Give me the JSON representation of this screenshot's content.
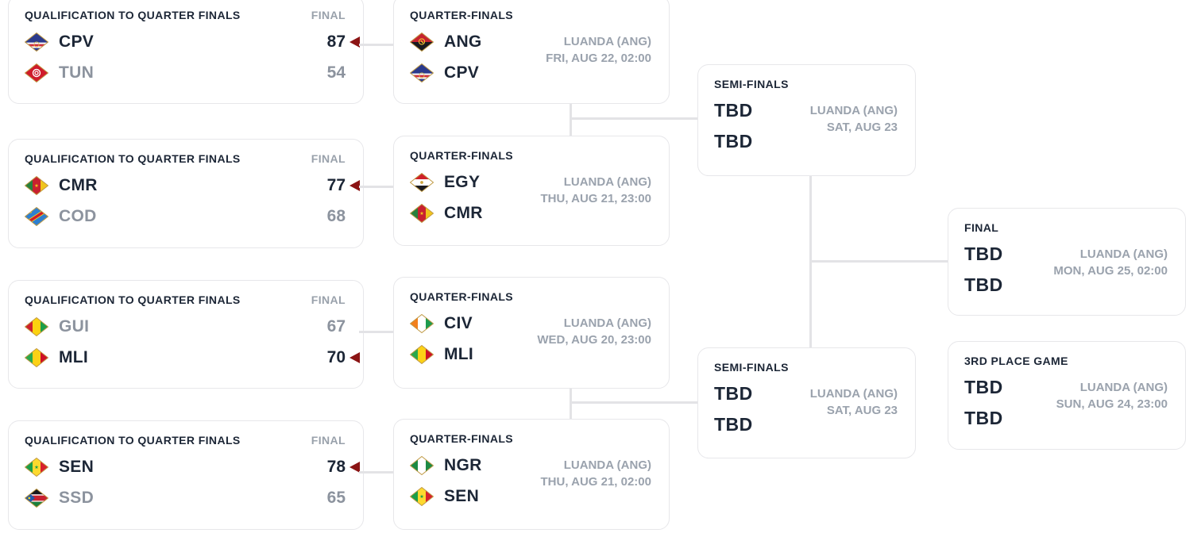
{
  "bracket": {
    "qualification_games": [
      {
        "title": "QUALIFICATION TO QUARTER FINALS",
        "status": "FINAL",
        "teams": [
          {
            "code": "CPV",
            "flag": "CPV",
            "score": "87",
            "winner": true
          },
          {
            "code": "TUN",
            "flag": "TUN",
            "score": "54",
            "winner": false
          }
        ]
      },
      {
        "title": "QUALIFICATION TO QUARTER FINALS",
        "status": "FINAL",
        "teams": [
          {
            "code": "CMR",
            "flag": "CMR",
            "score": "77",
            "winner": true
          },
          {
            "code": "COD",
            "flag": "COD",
            "score": "68",
            "winner": false
          }
        ]
      },
      {
        "title": "QUALIFICATION TO QUARTER FINALS",
        "status": "FINAL",
        "teams": [
          {
            "code": "GUI",
            "flag": "GUI",
            "score": "67",
            "winner": false
          },
          {
            "code": "MLI",
            "flag": "MLI",
            "score": "70",
            "winner": true
          }
        ]
      },
      {
        "title": "QUALIFICATION TO QUARTER FINALS",
        "status": "FINAL",
        "teams": [
          {
            "code": "SEN",
            "flag": "SEN",
            "score": "78",
            "winner": true
          },
          {
            "code": "SSD",
            "flag": "SSD",
            "score": "65",
            "winner": false
          }
        ]
      }
    ],
    "quarter_finals": [
      {
        "title": "QUARTER-FINALS",
        "venue": "LUANDA (ANG)",
        "datetime": "FRI, AUG 22, 02:00",
        "teams": [
          {
            "code": "ANG",
            "flag": "ANG"
          },
          {
            "code": "CPV",
            "flag": "CPV"
          }
        ]
      },
      {
        "title": "QUARTER-FINALS",
        "venue": "LUANDA (ANG)",
        "datetime": "THU, AUG 21, 23:00",
        "teams": [
          {
            "code": "EGY",
            "flag": "EGY"
          },
          {
            "code": "CMR",
            "flag": "CMR"
          }
        ]
      },
      {
        "title": "QUARTER-FINALS",
        "venue": "LUANDA (ANG)",
        "datetime": "WED, AUG 20, 23:00",
        "teams": [
          {
            "code": "CIV",
            "flag": "CIV"
          },
          {
            "code": "MLI",
            "flag": "MLI"
          }
        ]
      },
      {
        "title": "QUARTER-FINALS",
        "venue": "LUANDA (ANG)",
        "datetime": "THU, AUG 21, 02:00",
        "teams": [
          {
            "code": "NGR",
            "flag": "NGR"
          },
          {
            "code": "SEN",
            "flag": "SEN"
          }
        ]
      }
    ],
    "semi_finals": [
      {
        "title": "SEMI-FINALS",
        "venue": "LUANDA (ANG)",
        "datetime": "SAT, AUG 23",
        "teams": [
          {
            "code": "TBD"
          },
          {
            "code": "TBD"
          }
        ]
      },
      {
        "title": "SEMI-FINALS",
        "venue": "LUANDA (ANG)",
        "datetime": "SAT, AUG 23",
        "teams": [
          {
            "code": "TBD"
          },
          {
            "code": "TBD"
          }
        ]
      }
    ],
    "final_game": {
      "title": "FINAL",
      "venue": "LUANDA (ANG)",
      "datetime": "MON, AUG 25, 02:00",
      "teams": [
        {
          "code": "TBD"
        },
        {
          "code": "TBD"
        }
      ]
    },
    "third_place_game": {
      "title": "3RD PLACE GAME",
      "venue": "LUANDA (ANG)",
      "datetime": "SUN, AUG 24, 23:00",
      "teams": [
        {
          "code": "TBD"
        },
        {
          "code": "TBD"
        }
      ]
    }
  },
  "colors": {
    "text_dark": "#1c2636",
    "text_gray": "#8c939e",
    "venue_gray": "#9aa2ad",
    "card_border": "#e7e7ea",
    "connector": "#e3e3e6",
    "winner_arrow": "#8b1414",
    "flag_outline": "#c09a45"
  },
  "flag_icons": {
    "CPV": {
      "bg": "#2b3a8c",
      "el": [
        [
          "r",
          0,
          12.6,
          30,
          2.1,
          "#ffffff"
        ],
        [
          "r",
          0,
          14.7,
          30,
          2.7,
          "#d32f3d"
        ],
        [
          "r",
          0,
          17.4,
          30,
          2.1,
          "#ffffff"
        ],
        [
          "o",
          15,
          15,
          3.2,
          "#e8c93e",
          0.7
        ]
      ]
    },
    "TUN": {
      "bg": "#cf1b2b",
      "el": [
        [
          "c",
          15,
          12,
          5.2,
          "#ffffff"
        ],
        [
          "o",
          15,
          12,
          3.2,
          "#cf1b2b",
          1.2
        ],
        [
          "c",
          15,
          12,
          1.4,
          "#cf1b2b"
        ]
      ]
    },
    "ANG": {
      "bg": "#c62430",
      "el": [
        [
          "r",
          0,
          12,
          30,
          12,
          "#1a1a20"
        ],
        [
          "o",
          15,
          11.5,
          3.6,
          "#f2c230",
          1.1
        ],
        [
          "r",
          12.8,
          10.9,
          4.4,
          1.3,
          "#f2c230",
          45
        ]
      ]
    },
    "CMR": {
      "bg": "#c8202f",
      "el": [
        [
          "r",
          0,
          0,
          10,
          24,
          "#27803d"
        ],
        [
          "r",
          20,
          0,
          10,
          24,
          "#f0c41c"
        ],
        [
          "p",
          "15,9.4 15.59,11.19 17.47,11.2 15.95,12.31 16.53,14.1 15,13 13.47,14.1 14.05,12.31 12.53,11.2 14.41,11.19",
          "#f0c41c"
        ]
      ]
    },
    "COD": {
      "bg": "#2e7fd0",
      "el": [
        [
          "r",
          -5,
          9.4,
          40,
          5.2,
          "#f7d618",
          -33
        ],
        [
          "r",
          -5,
          10.3,
          40,
          3.4,
          "#cf1b2b",
          -33
        ],
        [
          "c",
          7.5,
          6.5,
          1.3,
          "#f7d618"
        ]
      ]
    },
    "GUI": {
      "bg": "#fcd20f",
      "el": [
        [
          "r",
          0,
          0,
          10,
          24,
          "#ce1f2c"
        ],
        [
          "r",
          20,
          0,
          10,
          24,
          "#1b9e49"
        ]
      ]
    },
    "MLI": {
      "bg": "#fcd116",
      "el": [
        [
          "r",
          0,
          0,
          10,
          24,
          "#2aa84d"
        ],
        [
          "r",
          20,
          0,
          10,
          24,
          "#ce1126"
        ]
      ]
    },
    "SEN": {
      "bg": "#fdd92e",
      "el": [
        [
          "r",
          0,
          0,
          10,
          24,
          "#1a9e49"
        ],
        [
          "r",
          20,
          0,
          10,
          24,
          "#d7202c"
        ],
        [
          "p",
          "15,9.4 15.59,11.19 17.47,11.2 15.95,12.31 16.53,14.1 15,13 13.47,14.1 14.05,12.31 12.53,11.2 14.41,11.19",
          "#1a9e49"
        ]
      ]
    },
    "SSD": {
      "bg": "#c8202f",
      "el": [
        [
          "r",
          0,
          0,
          30,
          7.3,
          "#17171c"
        ],
        [
          "r",
          0,
          7.3,
          30,
          1.4,
          "#ffffff"
        ],
        [
          "r",
          0,
          15.3,
          30,
          1.4,
          "#ffffff"
        ],
        [
          "r",
          0,
          16.7,
          30,
          7.3,
          "#1b7e3c"
        ],
        [
          "p",
          "0,0 0,24 13,12",
          "#2257a7"
        ],
        [
          "c",
          5.8,
          12,
          1.4,
          "#f7d618"
        ]
      ]
    },
    "EGY": {
      "bg": "#ffffff",
      "el": [
        [
          "r",
          0,
          0,
          30,
          8,
          "#cf2029"
        ],
        [
          "r",
          0,
          16,
          30,
          8,
          "#1b1b20"
        ],
        [
          "c",
          15,
          12,
          1.9,
          "#cda43e"
        ]
      ]
    },
    "NGR": {
      "bg": "#ffffff",
      "el": [
        [
          "r",
          0,
          0,
          10,
          24,
          "#1d8a44"
        ],
        [
          "r",
          20,
          0,
          10,
          24,
          "#1d8a44"
        ]
      ]
    },
    "CIV": {
      "bg": "#ffffff",
      "el": [
        [
          "r",
          0,
          0,
          10,
          24,
          "#f27f1c"
        ],
        [
          "r",
          20,
          0,
          10,
          24,
          "#1d9a4e"
        ]
      ]
    }
  }
}
